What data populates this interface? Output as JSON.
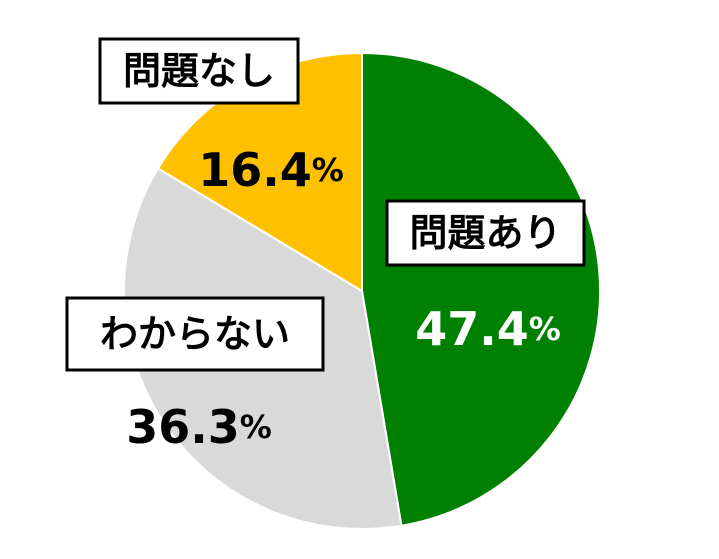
{
  "chart_data": {
    "type": "pie",
    "start_angle_deg": 0,
    "direction": "clockwise",
    "slices": [
      {
        "label": "問題あり",
        "value": 47.4,
        "display": "47.4",
        "unit": "%",
        "color": "#008000",
        "value_color": "#ffffff"
      },
      {
        "label": "わからない",
        "value": 36.3,
        "display": "36.3",
        "unit": "%",
        "color": "#d9d9d9",
        "value_color": "#000000"
      },
      {
        "label": "問題なし",
        "value": 16.4,
        "display": "16.4",
        "unit": "%",
        "color": "#ffc000",
        "value_color": "#000000"
      }
    ]
  }
}
